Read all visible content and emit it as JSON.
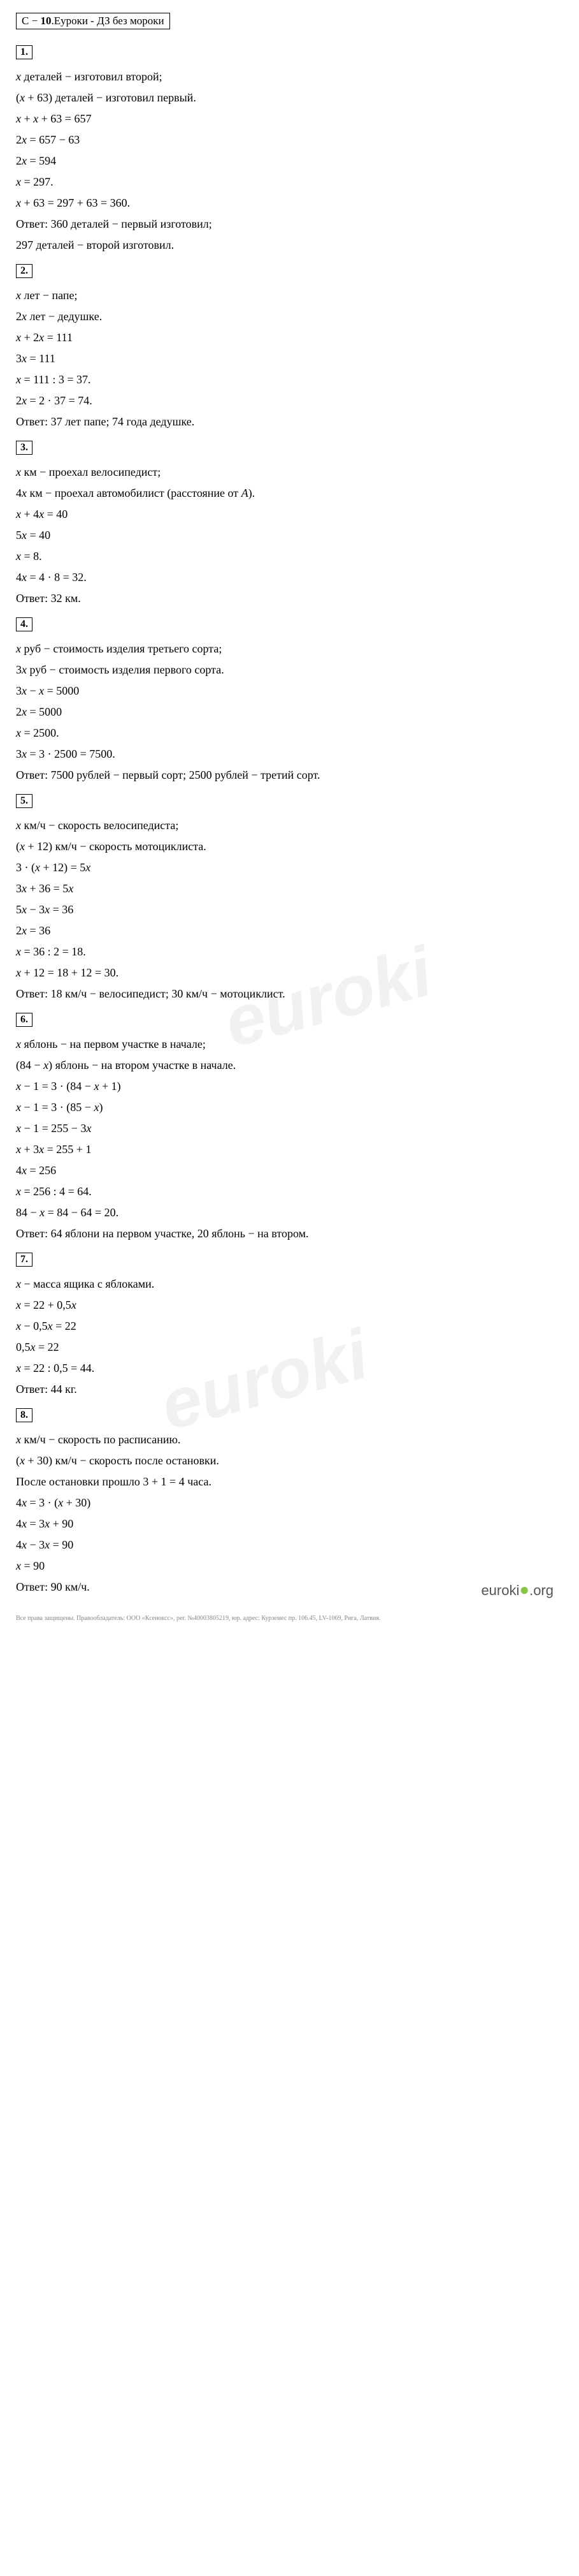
{
  "header": {
    "prefix": "С − ",
    "num": "10",
    "suffix": ".Еуроки - ДЗ без мороки"
  },
  "tasks": [
    {
      "num": "1.",
      "lines": [
        "<i>x</i> деталей − изготовил второй;",
        "(<i>x</i> + 63) деталей − изготовил первый.",
        "<i>x</i> + <i>x</i> + 63 = 657",
        "2<i>x</i> = 657 − 63",
        "2<i>x</i> = 594",
        "<i>x</i> = 297.",
        "<i>x</i> + 63 = 297 + 63 = 360.",
        "Ответ: 360 деталей − первый изготовил;",
        "297 деталей − второй изготовил."
      ]
    },
    {
      "num": "2.",
      "lines": [
        "<i>x</i> лет − папе;",
        "2<i>x</i> лет − дедушке.",
        "<i>x</i> + 2<i>x</i> = 111",
        "3<i>x</i> = 111",
        "<i>x</i> = 111 : 3 = 37.",
        "2<i>x</i> = 2 · 37 = 74.",
        "Ответ: 37 лет папе; 74 года дедушке."
      ]
    },
    {
      "num": "3.",
      "lines": [
        "<i>x</i> км − проехал велосипедист;",
        "4<i>x</i> км − проехал автомобилист (расстояние от <i>A</i>).",
        "<i>x</i> + 4<i>x</i> = 40",
        "5<i>x</i> = 40",
        "<i>x</i> = 8.",
        "4<i>x</i> = 4 · 8 = 32.",
        "Ответ: 32 км."
      ]
    },
    {
      "num": "4.",
      "lines": [
        "<i>x</i> руб − стоимость изделия третьего сорта;",
        "3<i>x</i> руб − стоимость изделия первого сорта.",
        "3<i>x</i> − <i>x</i> = 5000",
        "2<i>x</i> = 5000",
        "<i>x</i> = 2500.",
        "3<i>x</i> = 3 · 2500 = 7500.",
        "Ответ: 7500 рублей − первый сорт; 2500 рублей − третий сорт."
      ]
    },
    {
      "num": "5.",
      "lines": [
        "<i>x</i>  км/ч − скорость велосипедиста;",
        "(<i>x</i> + 12) км/ч − скорость мотоциклиста.",
        "3 · (<i>x</i> + 12) = 5<i>x</i>",
        "3<i>x</i> + 36 = 5<i>x</i>",
        "5<i>x</i> − 3<i>x</i> = 36",
        "2<i>x</i> = 36",
        "<i>x</i> = 36 : 2 = 18.",
        "<i>x</i> + 12 = 18 + 12 = 30.",
        "Ответ: 18  км/ч − велосипедист; 30  км/ч − мотоциклист."
      ]
    },
    {
      "num": "6.",
      "lines": [
        "<i>x</i> яблонь − на первом участке в начале;",
        "(84 − <i>x</i>) яблонь − на втором участке в начале.",
        "<i>x</i> − 1 = 3 · (84 − <i>x</i> + 1)",
        "<i>x</i> − 1 = 3 · (85 − <i>x</i>)",
        "<i>x</i> − 1 = 255 − 3<i>x</i>",
        "<i>x</i> + 3<i>x</i> = 255 + 1",
        "4<i>x</i> = 256",
        "<i>x</i> = 256 : 4 = 64.",
        "84 − <i>x</i> = 84 − 64 = 20.",
        "Ответ: 64 яблони на первом участке, 20 яблонь − на втором."
      ]
    },
    {
      "num": "7.",
      "lines": [
        "<i>x</i> − масса ящика с яблоками.",
        "<i>x</i> = 22 + 0,5<i>x</i>",
        "<i>x</i> − 0,5<i>x</i> = 22",
        "0,5<i>x</i> = 22",
        "<i>x</i> = 22 : 0,5 = 44.",
        "Ответ: 44 кг."
      ]
    },
    {
      "num": "8.",
      "lines": [
        "<i>x</i>  км/ч − скорость по расписанию.",
        "(<i>x</i> + 30) км/ч − скорость после остановки.",
        "После остановки прошло 3 + 1 = 4 часа.",
        "4<i>x</i> = 3 · (<i>x</i> + 30)",
        "4<i>x</i> = 3<i>x</i> + 90",
        "4<i>x</i> − 3<i>x</i> = 90",
        "<i>x</i> = 90",
        "Ответ: 90  км/ч."
      ]
    }
  ],
  "watermark": "euroki",
  "logo": {
    "text": "euroki",
    "suffix": ".org"
  },
  "footer": "Все права защищены. Правообладатель: ООО «Ксеноксс», рег. №40003805219, юр. адрес: Курземес пр. 106.45, LV-1069, Рига, Латвия."
}
